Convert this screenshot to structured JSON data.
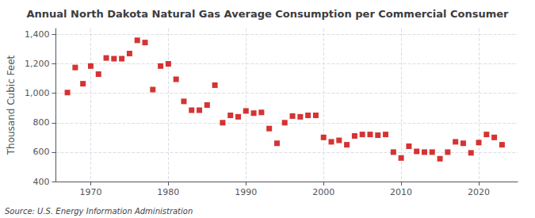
{
  "chart_data": {
    "type": "scatter",
    "title": "Annual North Dakota Natural Gas Average Consumption per Commercial Consumer",
    "ylabel": "Thousand Cubic Feet",
    "annotation": "Source: U.S. Energy Information Administration",
    "color": "#cc0000",
    "marker": "square",
    "grid": true,
    "xlim": [
      1965.5,
      2025
    ],
    "xticks": [
      1970,
      1980,
      1990,
      2000,
      2010,
      2020
    ],
    "ylim": [
      400,
      1440
    ],
    "yticks": [
      400,
      600,
      800,
      {
        "value": 1000,
        "label": "1,000"
      },
      {
        "value": 1200,
        "label": "1,200"
      },
      {
        "value": 1400,
        "label": "1,400"
      }
    ],
    "x": [
      1967,
      1968,
      1969,
      1970,
      1971,
      1972,
      1973,
      1974,
      1975,
      1976,
      1977,
      1978,
      1979,
      1980,
      1981,
      1982,
      1983,
      1984,
      1985,
      1986,
      1987,
      1988,
      1989,
      1990,
      1991,
      1992,
      1993,
      1994,
      1995,
      1996,
      1997,
      1998,
      1999,
      2000,
      2001,
      2002,
      2003,
      2004,
      2005,
      2006,
      2007,
      2008,
      2009,
      2010,
      2011,
      2012,
      2013,
      2014,
      2015,
      2016,
      2017,
      2018,
      2019,
      2020,
      2021,
      2022,
      2023
    ],
    "values": [
      1005,
      1175,
      1065,
      1185,
      1130,
      1240,
      1235,
      1235,
      1270,
      1360,
      1345,
      1025,
      1185,
      1200,
      1095,
      945,
      885,
      885,
      920,
      1055,
      800,
      850,
      840,
      880,
      865,
      870,
      760,
      660,
      800,
      845,
      840,
      850,
      850,
      700,
      670,
      680,
      650,
      710,
      720,
      720,
      715,
      720,
      600,
      560,
      640,
      605,
      600,
      600,
      555,
      600,
      670,
      660,
      595,
      665,
      720,
      700,
      650
    ]
  }
}
